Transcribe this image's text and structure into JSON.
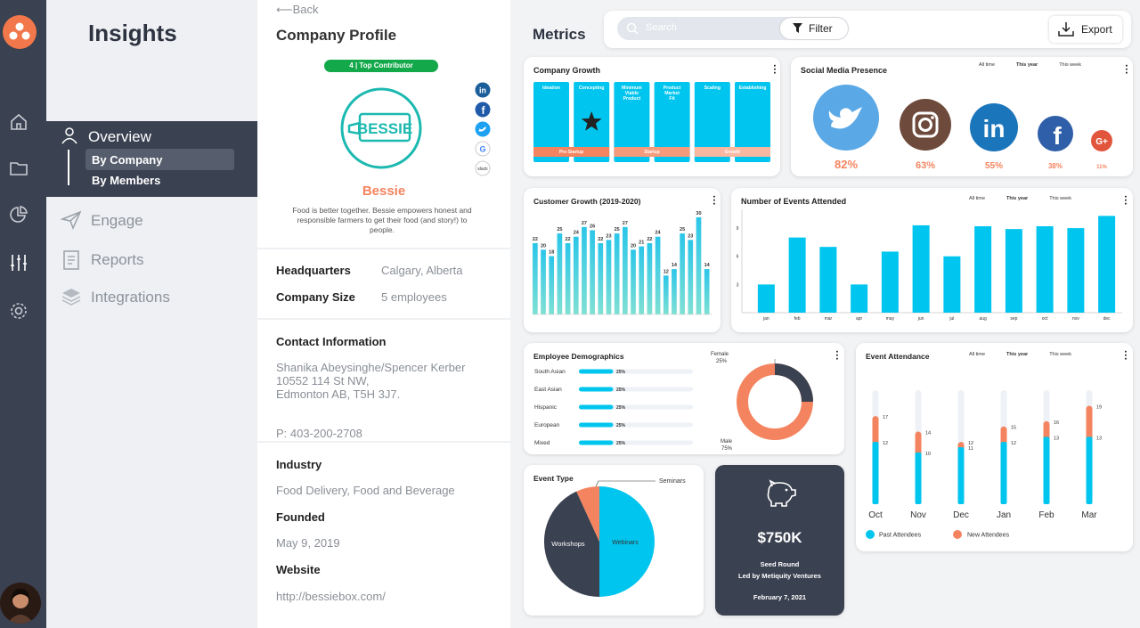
{
  "app": {
    "title": "Insights"
  },
  "nav": {
    "overview": "Overview",
    "by_company": "By Company",
    "by_members": "By Members",
    "engage": "Engage",
    "reports": "Reports",
    "integrations": "Integrations"
  },
  "profile": {
    "back": "Back",
    "title": "Company Profile",
    "badge": "4 | Top Contributor",
    "logo_text": "BESSIE",
    "name": "Bessie",
    "description": "Food is better together.  Bessie empowers honest and responsible farmers to get their food (and story!) to people.",
    "social": [
      "linkedin-icon",
      "facebook-icon",
      "twitter-icon",
      "google-icon",
      "slack-icon"
    ],
    "slack": "slack",
    "hq_label": "Headquarters",
    "hq_value": "Calgary, Alberta",
    "size_label": "Company Size",
    "size_value": "5 employees",
    "contact_label": "Contact Information",
    "contact_line1": "Shanika Abeysinghe/Spencer Kerber",
    "contact_line2": "10552 114 St NW,",
    "contact_line3": "Edmonton AB, T5H 3J7.",
    "phone": "P: 403-200-2708",
    "industry_label": "Industry",
    "industry_value": "Food Delivery, Food and Beverage",
    "founded_label": "Founded",
    "founded_value": "May 9, 2019",
    "website_label": "Website",
    "website_value": "http://bessiebox.com/"
  },
  "metrics": {
    "title": "Metrics",
    "search_placeholder": "Search",
    "filter": "Filter",
    "export": "Export"
  },
  "time_tabs": [
    "All time",
    "This year",
    "This week"
  ],
  "company_growth": {
    "title": "Company Growth",
    "stages": [
      "Ideation",
      "Concepting",
      "Minimum Viable Product",
      "Product Market Fit",
      "Scaling",
      "Establishing"
    ],
    "phases": [
      "Pre-Startup",
      "Startup",
      "Growth"
    ]
  },
  "social_media": {
    "title": "Social Media Presence",
    "items": [
      {
        "icon": "twitter-icon",
        "value": "82%",
        "color": "#5aa9e6"
      },
      {
        "icon": "instagram-icon",
        "value": "63%",
        "color": "#6e4a3c"
      },
      {
        "icon": "linkedin-icon",
        "value": "55%",
        "color": "#1b75bb"
      },
      {
        "icon": "facebook-icon",
        "value": "38%",
        "color": "#2f5fa8"
      },
      {
        "icon": "google-plus-icon",
        "value": "11%",
        "color": "#e2553d"
      }
    ],
    "linkedin_glyph": "in",
    "facebook_glyph": "f",
    "google_glyph": "G+"
  },
  "customer_growth": {
    "title": "Customer Growth (2019-2020)",
    "values": [
      22,
      20,
      18,
      25,
      22,
      24,
      27,
      26,
      22,
      23,
      25,
      27,
      20,
      21,
      22,
      24,
      12,
      14,
      25,
      23,
      30,
      14
    ]
  },
  "events_attended": {
    "title": "Number of Events Attended",
    "categories": [
      "jan",
      "feb",
      "mar",
      "apr",
      "may",
      "jun",
      "jul",
      "aug",
      "sep",
      "oct",
      "nov",
      "dec"
    ],
    "values": [
      3,
      8,
      7,
      3,
      6.5,
      9.3,
      6,
      9.2,
      8.9,
      9.2,
      9,
      10.3
    ],
    "yticks": [
      "3",
      "6",
      "9"
    ]
  },
  "demographics": {
    "title": "Employee Demographics",
    "rows": [
      {
        "label": "South Asian",
        "value": "25%"
      },
      {
        "label": "East Asian",
        "value": "25%"
      },
      {
        "label": "Hispanic",
        "value": "25%"
      },
      {
        "label": "European",
        "value": "25%"
      },
      {
        "label": "Mixed",
        "value": "25%"
      }
    ],
    "female_label": "Female",
    "female_value": "25%",
    "male_label": "Male",
    "male_value": "75%"
  },
  "event_attendance": {
    "title": "Event Attendance",
    "months": [
      "Oct",
      "Nov",
      "Dec",
      "Jan",
      "Feb",
      "Mar"
    ],
    "past": [
      12,
      10,
      11,
      12,
      13,
      13
    ],
    "new": [
      17,
      14,
      12,
      15,
      16,
      19
    ],
    "legend_past": "Past Attendees",
    "legend_new": "New Attendees"
  },
  "event_type": {
    "title": "Event Type",
    "seminars": "Seminars",
    "workshops": "Workshops",
    "webinars": "Webinars"
  },
  "funding": {
    "amount": "$750K",
    "round": "Seed Round",
    "led_by": "Led by Metiquity Ventures",
    "date": "February 7, 2021"
  },
  "colors": {
    "accent": "#00c5ee",
    "orange": "#f4845f",
    "dark": "#3a4150",
    "green": "#13a84a",
    "brand": "#1cb9b0"
  }
}
